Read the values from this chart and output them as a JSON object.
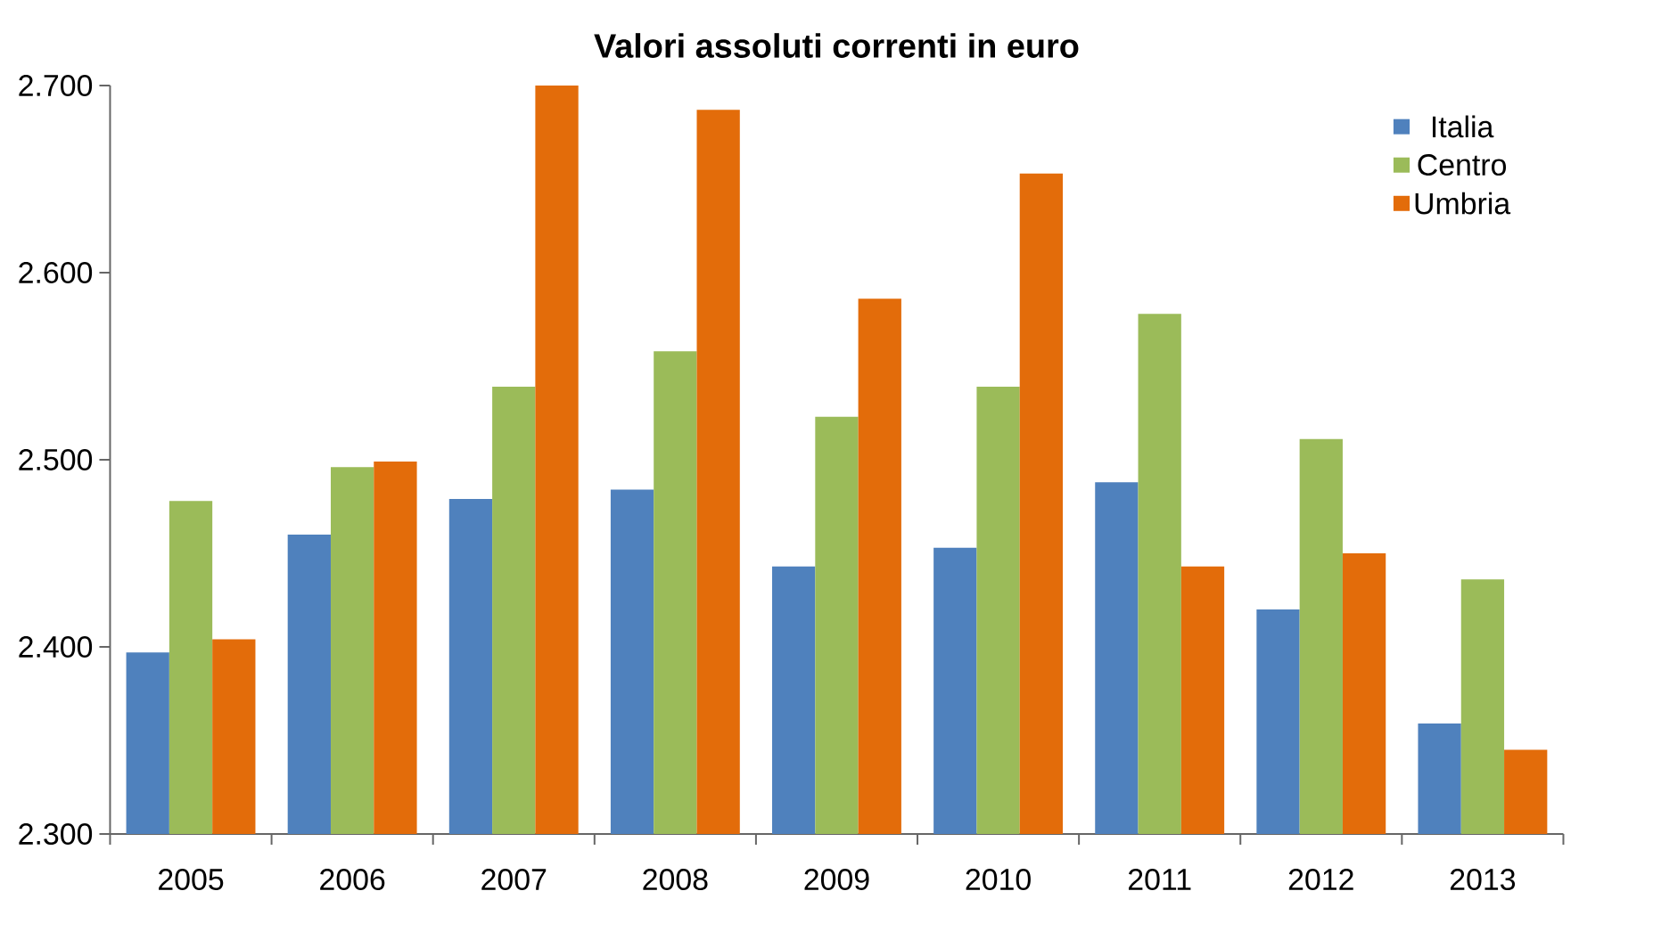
{
  "chart_data": {
    "type": "bar",
    "title": "Valori assoluti correnti in euro",
    "categories": [
      "2005",
      "2006",
      "2007",
      "2008",
      "2009",
      "2010",
      "2011",
      "2012",
      "2013"
    ],
    "series": [
      {
        "name": "Italia",
        "color": "#4f81bd",
        "values": [
          2397,
          2460,
          2479,
          2484,
          2443,
          2453,
          2488,
          2420,
          2359
        ]
      },
      {
        "name": "Centro",
        "color": "#9bbb59",
        "values": [
          2478,
          2496,
          2539,
          2558,
          2523,
          2539,
          2578,
          2511,
          2436
        ]
      },
      {
        "name": "Umbria",
        "color": "#e36c0a",
        "values": [
          2404,
          2499,
          2700,
          2687,
          2586,
          2653,
          2443,
          2450,
          2345
        ]
      }
    ],
    "ylim": [
      2300,
      2700
    ],
    "yticks": [
      {
        "value": 2300,
        "label": "2.300"
      },
      {
        "value": 2400,
        "label": "2.400"
      },
      {
        "value": 2500,
        "label": "2.500"
      },
      {
        "value": 2600,
        "label": "2.600"
      },
      {
        "value": 2700,
        "label": "2.700"
      }
    ],
    "legend": "top right",
    "grid": false
  }
}
